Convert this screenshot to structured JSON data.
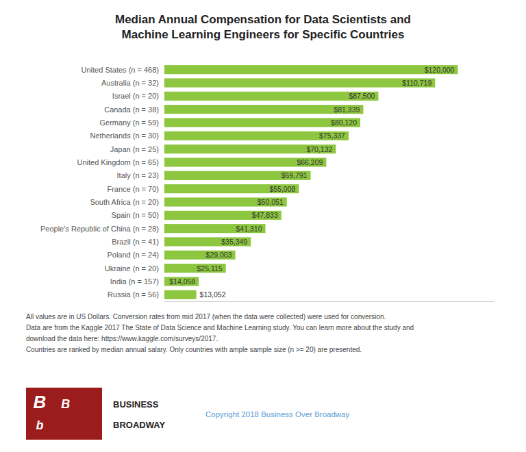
{
  "chart_data": {
    "type": "bar",
    "orientation": "horizontal",
    "title": "Median Annual Compensation for Data Scientists and\nMachine Learning Engineers for Specific Countries",
    "categories": [
      "United States (n =  468)",
      "Australia (n =  32)",
      "Israel (n = 20)",
      "Canada (n =  38)",
      "Germany (n =  59)",
      "Netherlands (n =  30)",
      "Japan (n =  25)",
      "United Kingdom (n =  65)",
      "Italy (n =  23)",
      "France (n =  70)",
      "South Africa (n =  20)",
      "Spain (n =  50)",
      "People's Republic of China (n = 28)",
      "Brazil (n =  41)",
      "Poland (n =  24)",
      "Ukraine (n =  20)",
      "India (n =  157)",
      "Russia (n =  56)"
    ],
    "values": [
      120000,
      110719,
      87500,
      81339,
      80120,
      75337,
      70132,
      66209,
      59791,
      55008,
      50051,
      47833,
      41310,
      35349,
      29003,
      25115,
      14058,
      13052
    ],
    "value_labels": [
      "$120,000",
      "$110,719",
      "$87,500",
      "$81,339",
      "$80,120",
      "$75,337",
      "$70,132",
      "$66,209",
      "$59,791",
      "$55,008",
      "$50,051",
      "$47,833",
      "$41,310",
      "$35,349",
      "$29,003",
      "$25,115",
      "$14,058",
      "$13,052"
    ],
    "data_labels": true,
    "color": "#8DC63F",
    "xlim": [
      0,
      135000
    ],
    "xticks": [],
    "grid": false,
    "tick_labels": "y",
    "annotations": [
      "All values are in US Dollars. Conversion rates from mid 2017 (when the data were collected) were used for conversion.",
      "Data are from the Kaggle 2017 The State of Data Science and Machine Learning study. You can learn more about the study and",
      "download the data here: https://www.kaggle.com/surveys/2017.",
      "Countries are ranked by median annual salary. Only countries with ample sample size (n >= 20) are presented.",
      "B",
      "B",
      "b",
      "BUSINESS",
      "BROADWAY",
      "Copyright 2018 Business Over Broadway"
    ]
  }
}
